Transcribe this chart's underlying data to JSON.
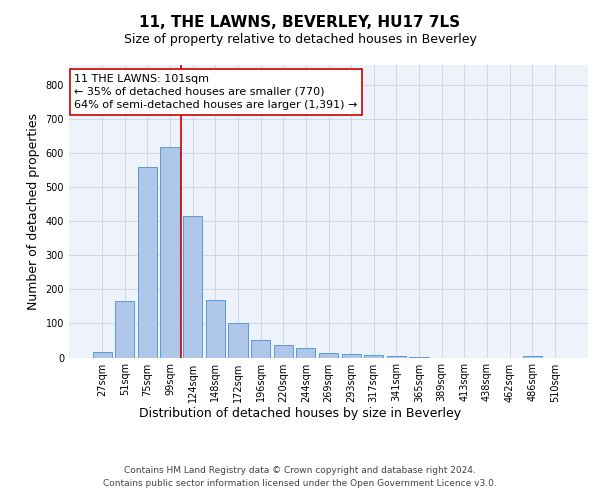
{
  "title": "11, THE LAWNS, BEVERLEY, HU17 7LS",
  "subtitle": "Size of property relative to detached houses in Beverley",
  "xlabel": "Distribution of detached houses by size in Beverley",
  "ylabel": "Number of detached properties",
  "bar_labels": [
    "27sqm",
    "51sqm",
    "75sqm",
    "99sqm",
    "124sqm",
    "148sqm",
    "172sqm",
    "196sqm",
    "220sqm",
    "244sqm",
    "269sqm",
    "293sqm",
    "317sqm",
    "341sqm",
    "365sqm",
    "389sqm",
    "413sqm",
    "438sqm",
    "462sqm",
    "486sqm",
    "510sqm"
  ],
  "bar_values": [
    15,
    165,
    560,
    620,
    415,
    170,
    102,
    50,
    38,
    28,
    12,
    11,
    6,
    4,
    1,
    0,
    0,
    0,
    0,
    5,
    0
  ],
  "bar_color": "#aec6e8",
  "bar_edgecolor": "#5b9bd5",
  "annotation_text": "11 THE LAWNS: 101sqm\n← 35% of detached houses are smaller (770)\n64% of semi-detached houses are larger (1,391) →",
  "annotation_box_color": "#ffffff",
  "annotation_box_edgecolor": "#cc0000",
  "vline_color": "#cc0000",
  "vline_x_index": 3,
  "grid_color": "#d0d8e8",
  "background_color": "#eef2fa",
  "footer_text": "Contains HM Land Registry data © Crown copyright and database right 2024.\nContains public sector information licensed under the Open Government Licence v3.0.",
  "ylim": [
    0,
    860
  ],
  "title_fontsize": 11,
  "subtitle_fontsize": 9,
  "axis_label_fontsize": 9,
  "tick_fontsize": 7,
  "annotation_fontsize": 8,
  "footer_fontsize": 6.5
}
